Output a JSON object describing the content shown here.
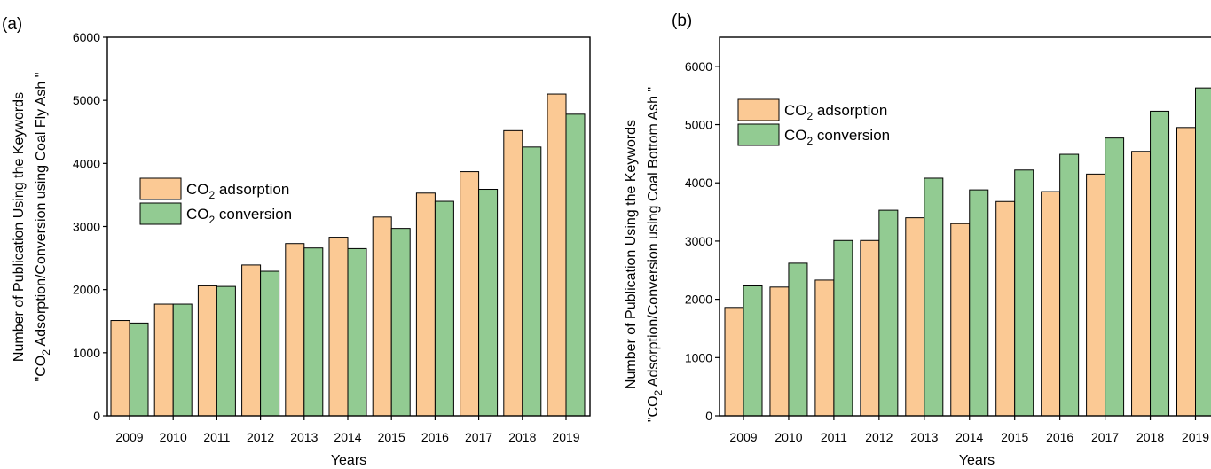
{
  "chart_data": [
    {
      "panel": "(a)",
      "type": "bar",
      "categories": [
        "2009",
        "2010",
        "2011",
        "2012",
        "2013",
        "2014",
        "2015",
        "2016",
        "2017",
        "2018",
        "2019"
      ],
      "series": [
        {
          "name": "CO2 adsorption",
          "color": "#fbc994",
          "values": [
            1510,
            1770,
            2060,
            2390,
            2730,
            2830,
            3150,
            3530,
            3870,
            4520,
            5100
          ]
        },
        {
          "name": "CO2 conversion",
          "color": "#92cb92",
          "values": [
            1470,
            1770,
            2050,
            2290,
            2660,
            2650,
            2970,
            3400,
            3590,
            4260,
            4780
          ]
        }
      ],
      "ylim": [
        0,
        6000
      ],
      "yticks": [
        0,
        1000,
        2000,
        3000,
        4000,
        5000,
        6000
      ],
      "xlabel": "Years",
      "ylabel_line1": "Number of Publication Using the Keywords",
      "ylabel_line2": "\"CO2 Adsorption/Conversion using Coal Fly Ash \"",
      "legend_position": "upper-left"
    },
    {
      "panel": "(b)",
      "type": "bar",
      "categories": [
        "2009",
        "2010",
        "2011",
        "2012",
        "2013",
        "2014",
        "2015",
        "2016",
        "2017",
        "2018",
        "2019"
      ],
      "series": [
        {
          "name": "CO2 adsorption",
          "color": "#fbc994",
          "values": [
            1860,
            2210,
            2330,
            3010,
            3400,
            3300,
            3680,
            3850,
            4150,
            4540,
            4950
          ]
        },
        {
          "name": "CO2 conversion",
          "color": "#92cb92",
          "values": [
            2230,
            2620,
            3010,
            3530,
            4080,
            3880,
            4220,
            4490,
            4770,
            5230,
            5630
          ]
        }
      ],
      "ylim": [
        0,
        6500
      ],
      "yticks": [
        0,
        1000,
        2000,
        3000,
        4000,
        5000,
        6000
      ],
      "xlabel": "Years",
      "ylabel_line1": "Number of Publication Using the Keywords",
      "ylabel_line2": "\"CO2 Adsorption/Conversion using Coal Bottom Ash \"",
      "legend_position": "upper-left"
    }
  ]
}
